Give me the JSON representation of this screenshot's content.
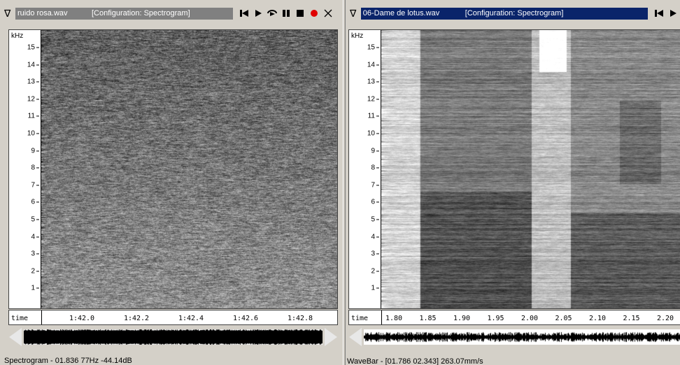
{
  "left": {
    "filename": "ruido rosa.wav",
    "config": "[Configuration: Spectrogram]",
    "y_unit": "kHz",
    "y_ticks": [
      "15",
      "14",
      "13",
      "12",
      "11",
      "10",
      "9",
      "8",
      "7",
      "6",
      "5",
      "4",
      "3",
      "2",
      "1"
    ],
    "time_label": "time",
    "time_ticks": [
      "1:42.0",
      "1:42.2",
      "1:42.4",
      "1:42.6",
      "1:42.8"
    ],
    "status": "Spectrogram - 01.836 77Hz -44.14dB"
  },
  "right": {
    "filename": "06-Dame de lotus.wav",
    "config": "[Configuration: Spectrogram]",
    "y_unit": "kHz",
    "y_ticks": [
      "15",
      "14",
      "13",
      "12",
      "11",
      "10",
      "9",
      "8",
      "7",
      "6",
      "5",
      "4",
      "3",
      "2",
      "1"
    ],
    "time_label": "time",
    "time_ticks": [
      "1.80",
      "1.85",
      "1.90",
      "1.95",
      "2.00",
      "2.05",
      "2.10",
      "2.15",
      "2.20"
    ],
    "status": "WaveBar - [01.786 02.343] 263.07mm/s"
  },
  "colors": {
    "active_title": "#0a246a",
    "inactive_title": "#808080",
    "record": "#e00000"
  }
}
